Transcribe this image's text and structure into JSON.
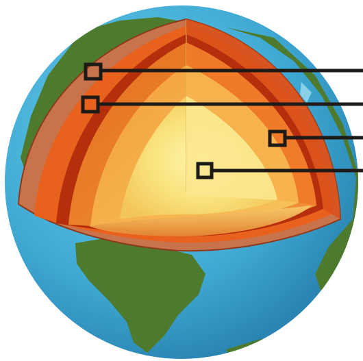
{
  "diagram": {
    "subject": "earth-cutaway",
    "layers": [
      {
        "id": "crust",
        "color": "#C8734B"
      },
      {
        "id": "upper-mantle",
        "color": "#E8621E"
      },
      {
        "id": "mantle-band",
        "color": "#B52F0C"
      },
      {
        "id": "lower-mantle",
        "color": "#EE8A3A"
      },
      {
        "id": "outer-core",
        "color": "#F4B24D"
      },
      {
        "id": "inner-core",
        "color": "#F9E27C"
      }
    ],
    "ocean_color": "#3FA9D3",
    "land_color": "#4E7A2E",
    "pointer_color": "#1E1A18",
    "callouts": [
      {
        "id": "callout-crust"
      },
      {
        "id": "callout-mantle"
      },
      {
        "id": "callout-outer-core"
      },
      {
        "id": "callout-inner-core"
      }
    ]
  }
}
